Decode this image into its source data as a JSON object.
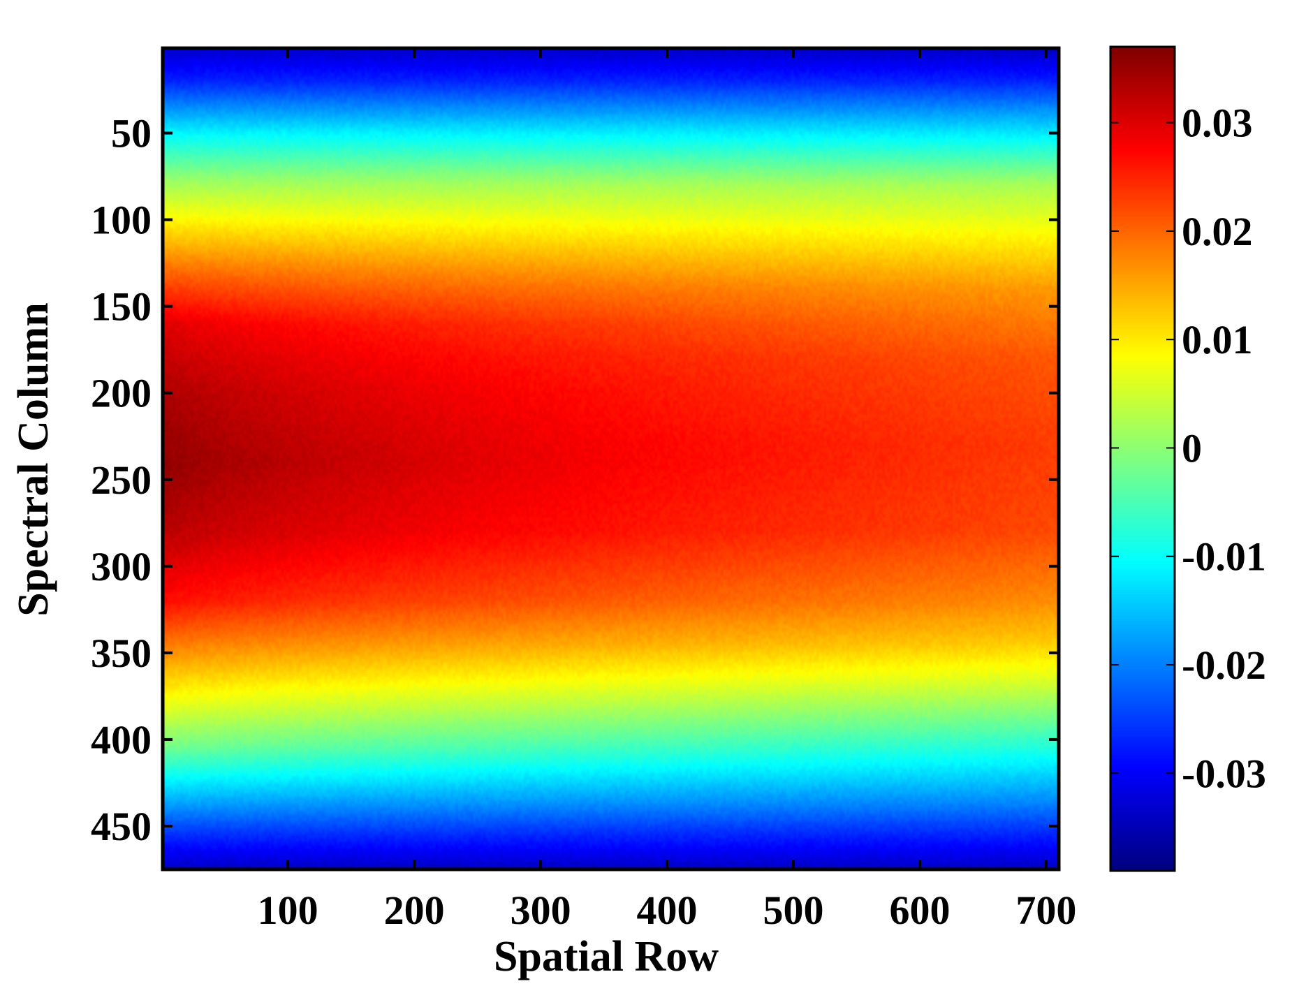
{
  "chart_data": {
    "type": "heatmap",
    "title": "",
    "xlabel": "Spatial Row",
    "ylabel": "Spectral Column",
    "xlim": [
      1,
      710
    ],
    "ylim": [
      1,
      475
    ],
    "y_reversed": true,
    "xticks": [
      100,
      200,
      300,
      400,
      500,
      600,
      700
    ],
    "yticks": [
      50,
      100,
      150,
      200,
      250,
      300,
      350,
      400,
      450
    ],
    "colormap": "jet",
    "colorbar": {
      "clim": [
        -0.039,
        0.037
      ],
      "ticks": [
        0.03,
        0.02,
        0.01,
        0,
        -0.01,
        -0.02,
        -0.03
      ],
      "tick_labels": [
        "0.03",
        "0.02",
        "0.01",
        "0",
        "-0.01",
        "-0.02",
        "-0.03"
      ]
    },
    "grid": false,
    "data_summary": {
      "row_profile_x1": [
        [
          1,
          -0.033
        ],
        [
          20,
          -0.027
        ],
        [
          50,
          -0.011
        ],
        [
          75,
          0.0
        ],
        [
          100,
          0.009
        ],
        [
          130,
          0.02
        ],
        [
          160,
          0.03
        ],
        [
          200,
          0.034
        ],
        [
          240,
          0.036
        ],
        [
          280,
          0.033
        ],
        [
          320,
          0.027
        ],
        [
          350,
          0.017
        ],
        [
          380,
          0.007
        ],
        [
          405,
          -0.002
        ],
        [
          430,
          -0.014
        ],
        [
          455,
          -0.026
        ],
        [
          475,
          -0.034
        ]
      ],
      "row_profile_x700": [
        [
          1,
          -0.034
        ],
        [
          20,
          -0.027
        ],
        [
          50,
          -0.012
        ],
        [
          80,
          0.002
        ],
        [
          110,
          0.009
        ],
        [
          140,
          0.016
        ],
        [
          180,
          0.021
        ],
        [
          230,
          0.023
        ],
        [
          280,
          0.022
        ],
        [
          320,
          0.017
        ],
        [
          345,
          0.012
        ],
        [
          365,
          0.006
        ],
        [
          385,
          -0.001
        ],
        [
          410,
          -0.01
        ],
        [
          435,
          -0.019
        ],
        [
          455,
          -0.027
        ],
        [
          475,
          -0.034
        ]
      ]
    }
  }
}
